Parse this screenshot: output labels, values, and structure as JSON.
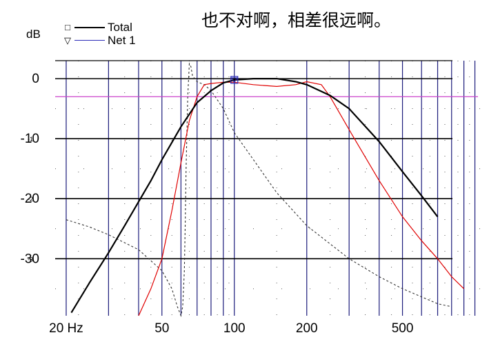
{
  "caption": "也不对啊，相差很远啊。",
  "chart_data": {
    "type": "line",
    "title": "",
    "xlabel": "",
    "ylabel": "dB",
    "xscale": "log",
    "xlim": [
      18,
      1100
    ],
    "ylim": [
      -39.5,
      3
    ],
    "x_tick_labels": [
      "20 Hz",
      "50",
      "100",
      "200",
      "500"
    ],
    "x_ticks": [
      20,
      50,
      100,
      200,
      500
    ],
    "y_tick_labels": [
      "0",
      "-10",
      "-20",
      "-30"
    ],
    "y_ticks": [
      0,
      -10,
      -20,
      -30
    ],
    "y_tick_overlays": [
      "-1",
      "-2",
      "-3"
    ],
    "reference_line_y": -3,
    "reference_line_color": "#cc44cc",
    "legend": {
      "position": "top-left",
      "entries": [
        "Total",
        "Net 1"
      ]
    },
    "colors": {
      "grid_major": "#000000",
      "grid_vertical": "#1a1a7a",
      "total": "#000000",
      "net1": "#2a2ab8",
      "red": "#e00000",
      "dashed": "#333333"
    },
    "series": [
      {
        "name": "Total",
        "x": [
          21,
          25,
          30,
          35,
          40,
          45,
          50,
          60,
          70,
          80,
          90,
          100,
          120,
          150,
          180,
          200,
          250,
          300,
          400,
          500,
          600,
          700
        ],
        "y": [
          -39,
          -34,
          -29,
          -24.5,
          -20.5,
          -17,
          -13.5,
          -8,
          -4,
          -2,
          -0.7,
          -0.2,
          0,
          0,
          -0.5,
          -1,
          -2.8,
          -5,
          -10.5,
          -15.5,
          -19.5,
          -23
        ]
      },
      {
        "name": "",
        "x": [
          40,
          45,
          50,
          55,
          60,
          65,
          70,
          75,
          80,
          90,
          100,
          120,
          150,
          180,
          200,
          230,
          250,
          300,
          400,
          500,
          600,
          700,
          800,
          900
        ],
        "y": [
          -39.5,
          -35,
          -30,
          -22,
          -14,
          -7,
          -3,
          -1,
          -0.8,
          -0.6,
          -0.6,
          -1,
          -1.3,
          -1,
          -0.5,
          -1,
          -3,
          -8.5,
          -17,
          -23,
          -27,
          -30,
          -33,
          -35
        ]
      },
      {
        "name": "",
        "x": [
          20,
          25,
          30,
          40,
          50,
          55,
          58,
          60,
          61,
          62,
          62.5,
          63,
          64,
          65,
          66,
          67,
          70,
          75,
          80,
          90,
          100,
          120,
          150,
          200,
          300,
          400,
          500,
          700,
          800
        ],
        "y": [
          -23.5,
          -24.7,
          -26,
          -28.5,
          -32,
          -35,
          -38,
          -39.5,
          -38,
          -32,
          -24,
          -15,
          -3,
          2.5,
          2,
          0.5,
          -0.5,
          -1,
          -2,
          -5,
          -9,
          -13.5,
          -19,
          -24.5,
          -30,
          -33,
          -35,
          -37.5,
          -38
        ]
      }
    ]
  }
}
